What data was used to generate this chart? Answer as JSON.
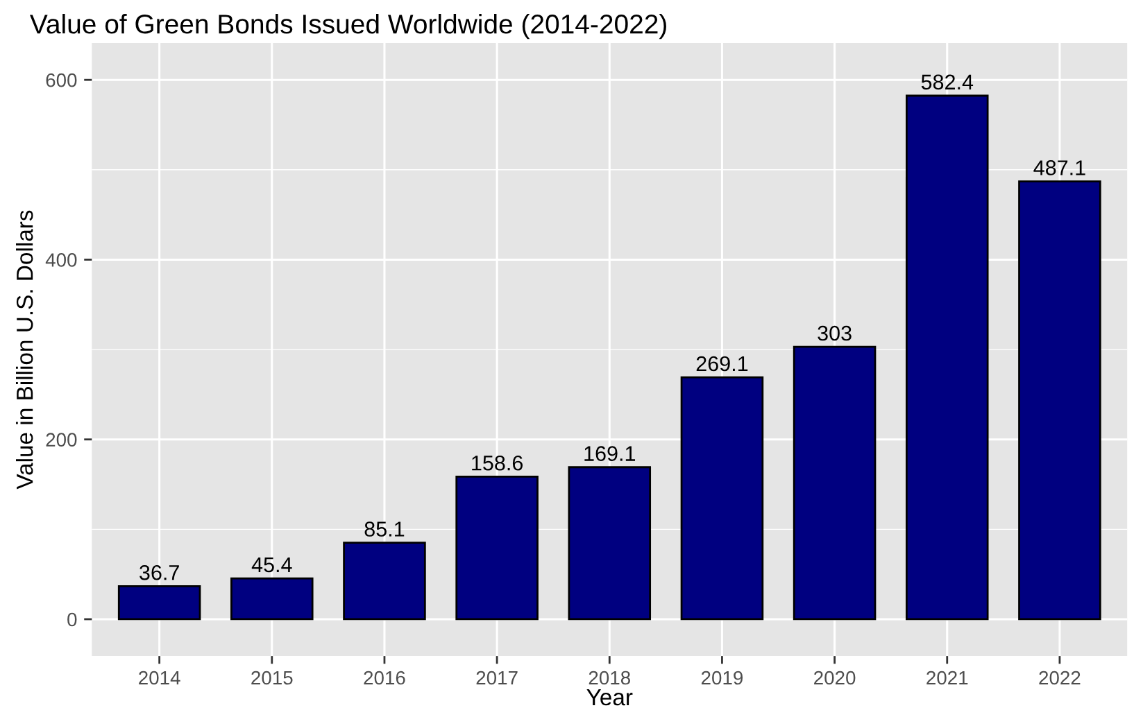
{
  "chart_data": {
    "type": "bar",
    "title": "Value of Green Bonds Issued Worldwide (2014-2022)",
    "xlabel": "Year",
    "ylabel": "Value in Billion U.S. Dollars",
    "categories": [
      "2014",
      "2015",
      "2016",
      "2017",
      "2018",
      "2019",
      "2020",
      "2021",
      "2022"
    ],
    "values": [
      36.7,
      45.4,
      85.1,
      158.6,
      169.1,
      269.1,
      303,
      582.4,
      487.1
    ],
    "color": "#000080",
    "ylim": [
      -41,
      641
    ],
    "yticks": [
      0,
      200,
      400,
      600
    ],
    "grid": true,
    "data_labels": true
  }
}
